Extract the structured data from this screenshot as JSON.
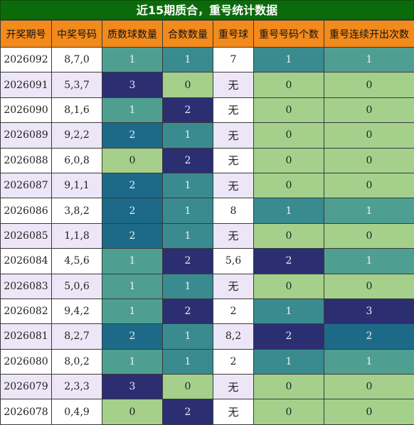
{
  "title": "近15期质合，重号统计数据",
  "headers": [
    "开奖期号",
    "中奖号码",
    "质数球数量",
    "合数数量",
    "重号球",
    "重号号码个数",
    "重号连续开出次数"
  ],
  "rows": [
    {
      "issue": "2026092",
      "nums": "8,7,0",
      "prime": "1",
      "composite": "1",
      "repeat": "7",
      "repeat_count": "1",
      "consecutive": "1"
    },
    {
      "issue": "2026091",
      "nums": "5,3,7",
      "prime": "3",
      "composite": "0",
      "repeat": "无",
      "repeat_count": "0",
      "consecutive": "0"
    },
    {
      "issue": "2026090",
      "nums": "8,1,6",
      "prime": "1",
      "composite": "2",
      "repeat": "无",
      "repeat_count": "0",
      "consecutive": "0"
    },
    {
      "issue": "2026089",
      "nums": "9,2,2",
      "prime": "2",
      "composite": "1",
      "repeat": "无",
      "repeat_count": "0",
      "consecutive": "0"
    },
    {
      "issue": "2026088",
      "nums": "6,0,8",
      "prime": "0",
      "composite": "2",
      "repeat": "无",
      "repeat_count": "0",
      "consecutive": "0"
    },
    {
      "issue": "2026087",
      "nums": "9,1,1",
      "prime": "2",
      "composite": "1",
      "repeat": "无",
      "repeat_count": "0",
      "consecutive": "0"
    },
    {
      "issue": "2026086",
      "nums": "3,8,2",
      "prime": "2",
      "composite": "1",
      "repeat": "8",
      "repeat_count": "1",
      "consecutive": "1"
    },
    {
      "issue": "2026085",
      "nums": "1,1,8",
      "prime": "2",
      "composite": "1",
      "repeat": "无",
      "repeat_count": "0",
      "consecutive": "0"
    },
    {
      "issue": "2026084",
      "nums": "4,5,6",
      "prime": "1",
      "composite": "2",
      "repeat": "5,6",
      "repeat_count": "2",
      "consecutive": "1"
    },
    {
      "issue": "2026083",
      "nums": "5,0,6",
      "prime": "1",
      "composite": "1",
      "repeat": "无",
      "repeat_count": "0",
      "consecutive": "0"
    },
    {
      "issue": "2026082",
      "nums": "9,4,2",
      "prime": "1",
      "composite": "2",
      "repeat": "2",
      "repeat_count": "1",
      "consecutive": "3"
    },
    {
      "issue": "2026081",
      "nums": "8,2,7",
      "prime": "2",
      "composite": "1",
      "repeat": "8,2",
      "repeat_count": "2",
      "consecutive": "2"
    },
    {
      "issue": "2026080",
      "nums": "8,0,2",
      "prime": "1",
      "composite": "1",
      "repeat": "2",
      "repeat_count": "1",
      "consecutive": "1"
    },
    {
      "issue": "2026079",
      "nums": "2,3,3",
      "prime": "3",
      "composite": "0",
      "repeat": "无",
      "repeat_count": "0",
      "consecutive": "0"
    },
    {
      "issue": "2026078",
      "nums": "0,4,9",
      "prime": "0",
      "composite": "2",
      "repeat": "无",
      "repeat_count": "0",
      "consecutive": "0"
    }
  ]
}
